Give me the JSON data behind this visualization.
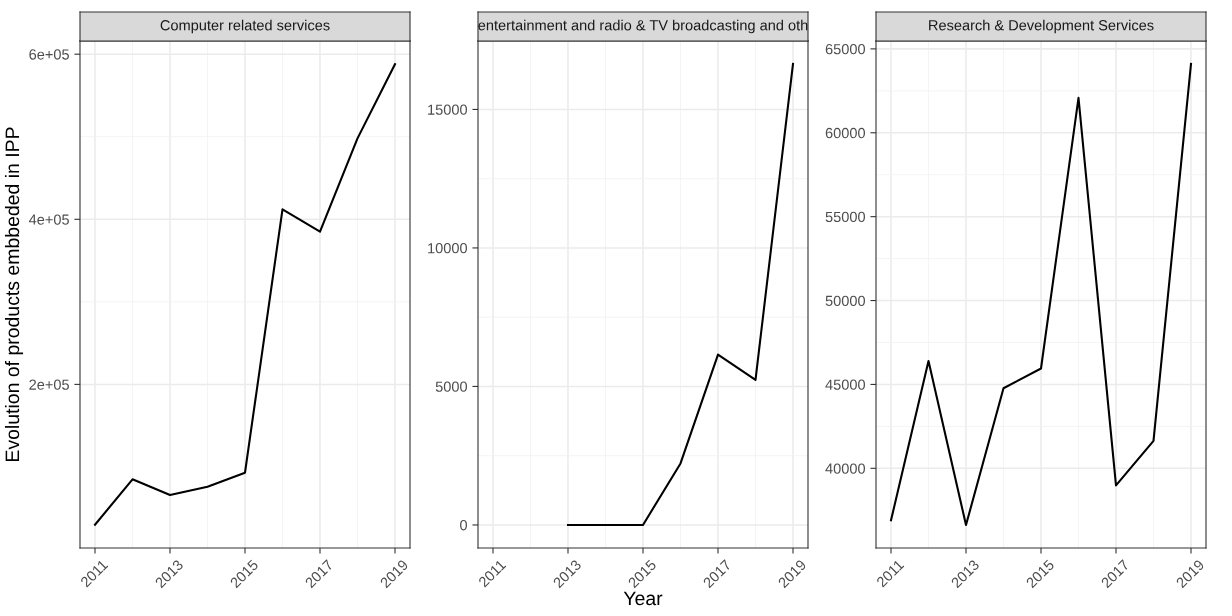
{
  "chart_data": [
    {
      "type": "line",
      "title": "Computer related services",
      "ylabel": "Evolution of products embbeded in IPP",
      "x": [
        2011,
        2012,
        2013,
        2014,
        2015,
        2016,
        2017,
        2018,
        2019
      ],
      "series": [
        {
          "color": "#000000",
          "values": [
            30000,
            85000,
            66000,
            76000,
            93000,
            412000,
            385000,
            498000,
            588000
          ]
        }
      ],
      "xlim": [
        2010.6,
        2019.4
      ],
      "xticks": [
        2011,
        2013,
        2015,
        2017,
        2019
      ],
      "ylim": [
        1800,
        616000
      ],
      "yticks": [
        {
          "value": 200000,
          "label": "2e+05"
        },
        {
          "value": 400000,
          "label": "4e+05"
        },
        {
          "value": 600000,
          "label": "6e+05"
        }
      ],
      "grid": true
    },
    {
      "type": "line",
      "title": "entertainment and radio & TV broadcasting and oth",
      "xlabel": "Year",
      "series": [
        {
          "color": "#000000",
          "x": [
            2013,
            2014,
            2015,
            2016,
            2017,
            2018,
            2019
          ],
          "values": [
            0,
            0,
            0,
            2220,
            6150,
            5240,
            16640
          ]
        }
      ],
      "xlim": [
        2010.6,
        2019.4
      ],
      "xticks": [
        2011,
        2013,
        2015,
        2017,
        2019
      ],
      "ylim": [
        -832,
        17470
      ],
      "yticks": [
        0,
        5000,
        10000,
        15000
      ],
      "grid": true
    },
    {
      "type": "line",
      "title": "Research & Development Services",
      "x": [
        2011,
        2012,
        2013,
        2014,
        2015,
        2016,
        2017,
        2018,
        2019
      ],
      "series": [
        {
          "color": "#000000",
          "values": [
            36900,
            46390,
            36620,
            44770,
            45950,
            62080,
            38980,
            41640,
            64100
          ]
        }
      ],
      "xlim": [
        2010.6,
        2019.4
      ],
      "xticks": [
        2011,
        2013,
        2015,
        2017,
        2019
      ],
      "ylim": [
        35250,
        65470
      ],
      "yticks": [
        40000,
        45000,
        50000,
        55000,
        60000,
        65000
      ],
      "grid": true
    }
  ]
}
